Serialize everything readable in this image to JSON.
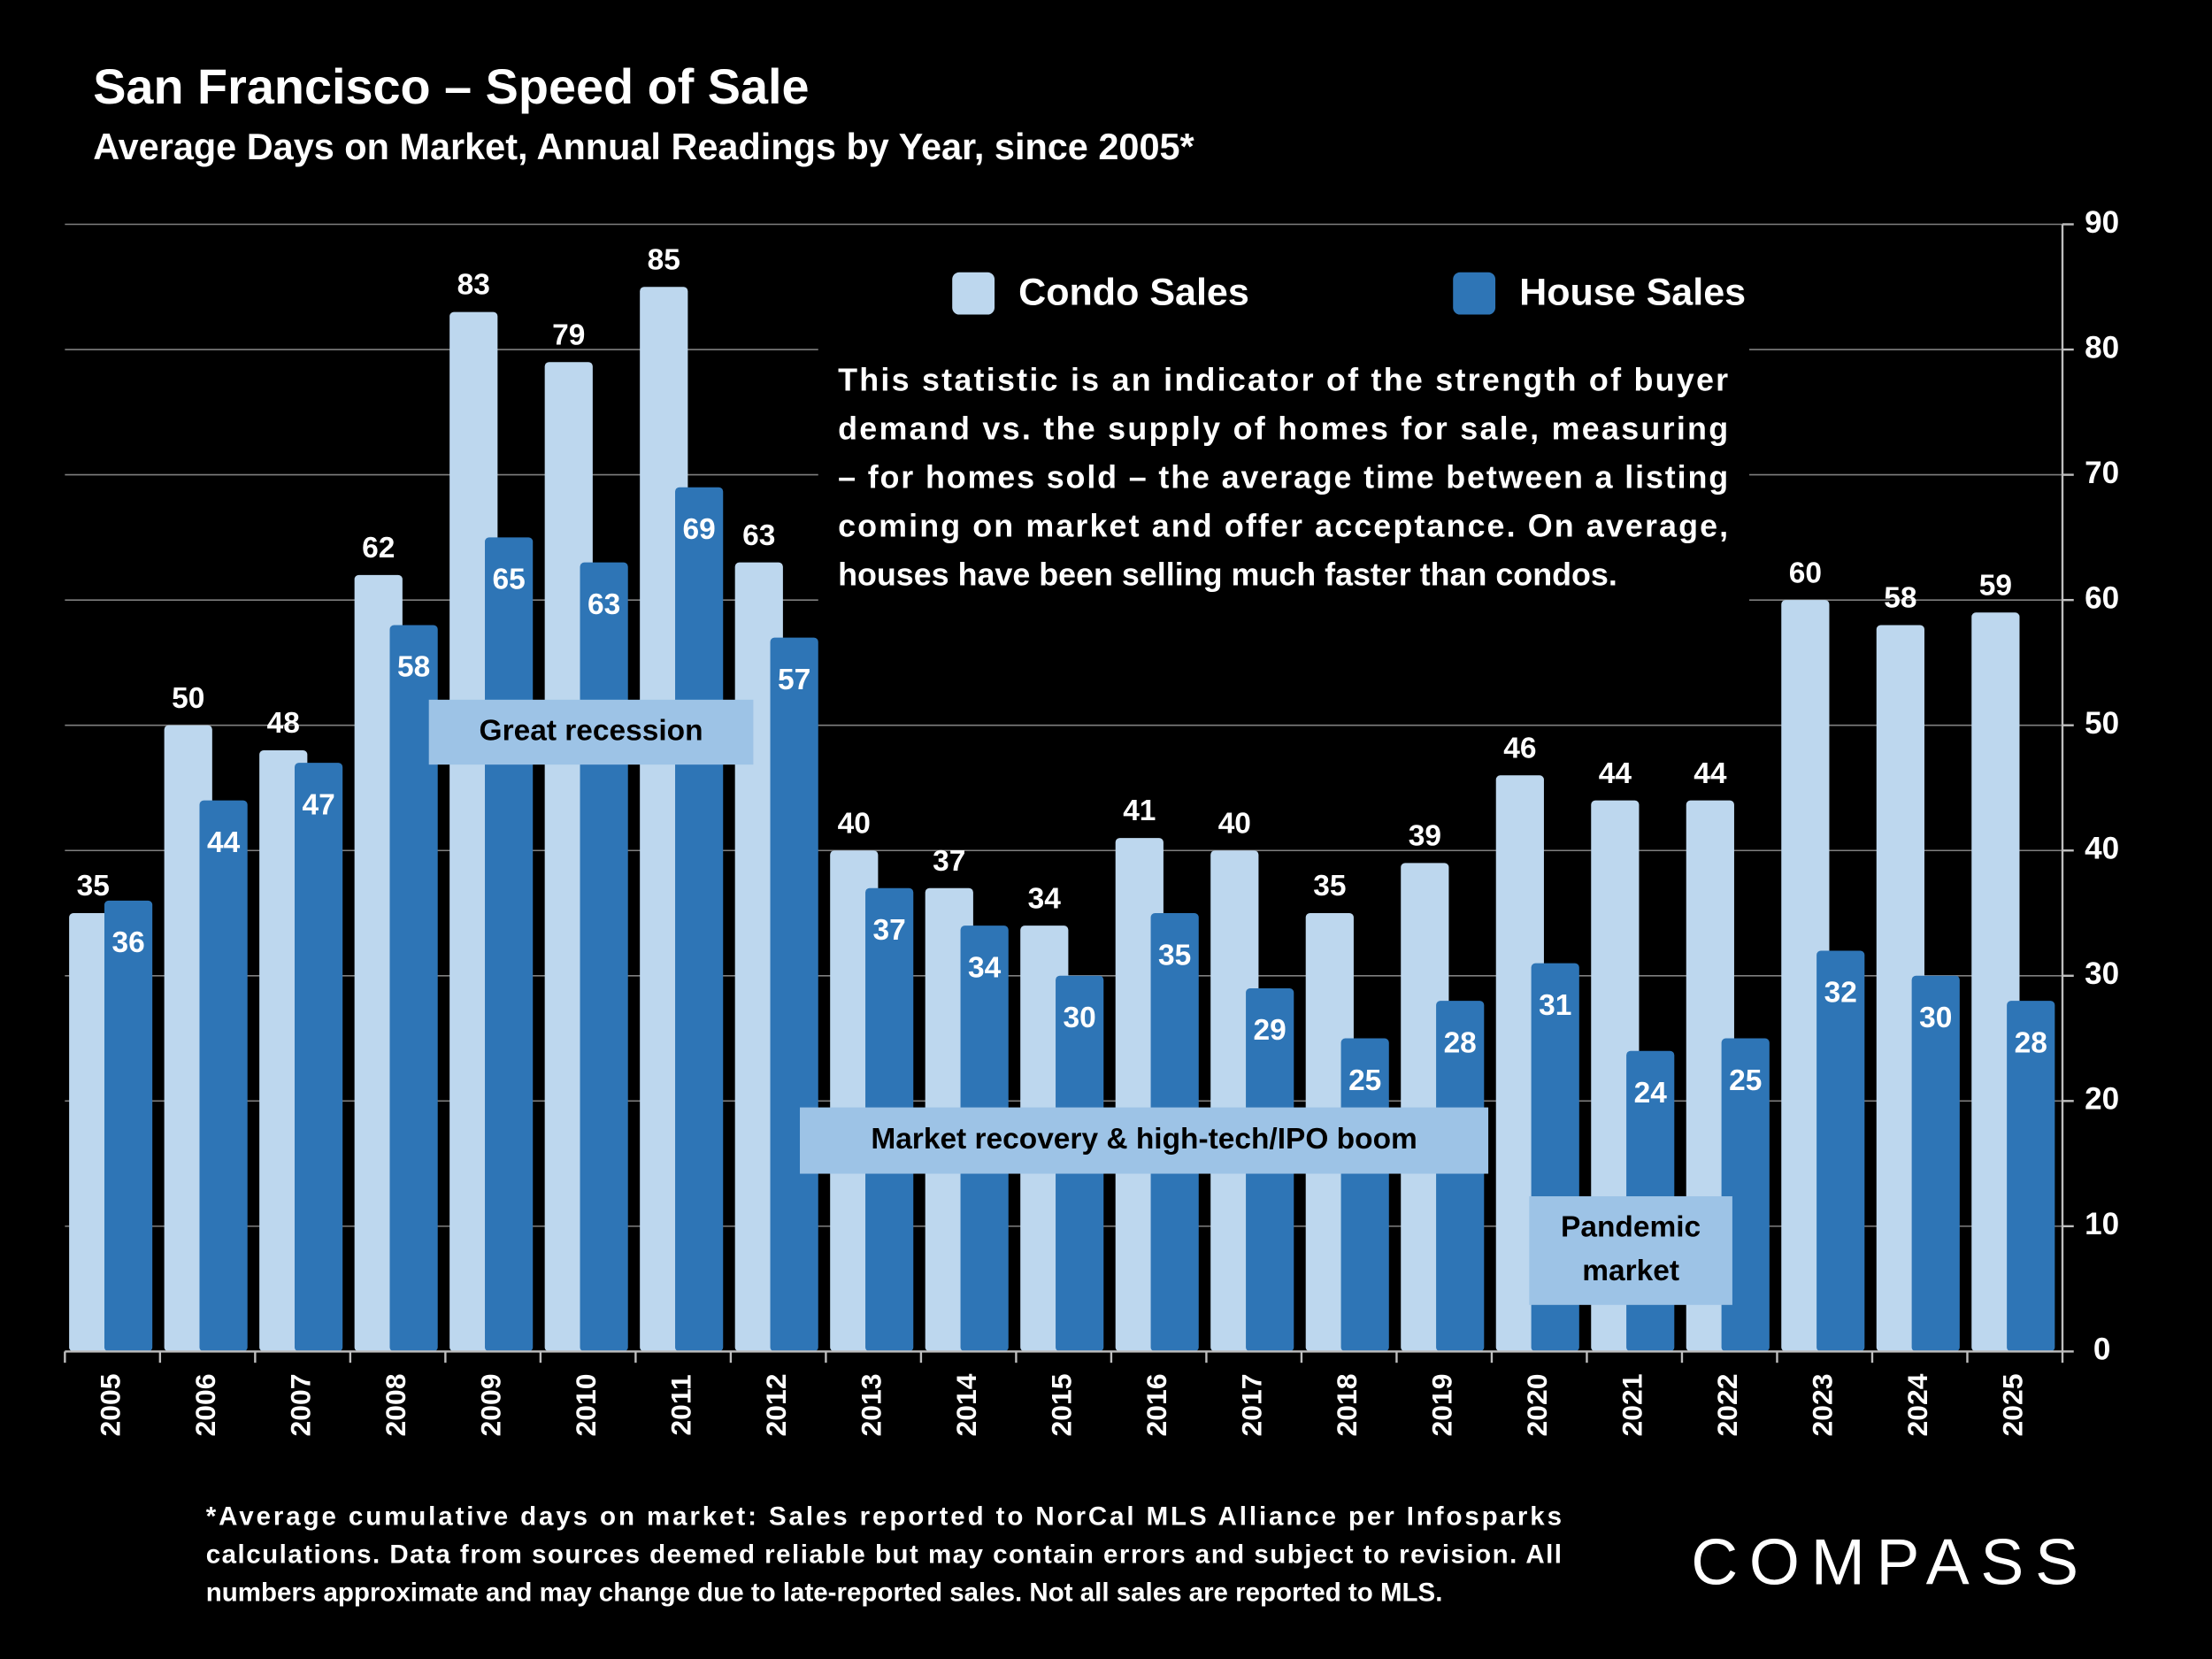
{
  "chart_data": {
    "type": "bar",
    "title": "San Francisco – Speed of Sale",
    "subtitle": "Average Days on Market, Annual Readings by Year, since 2005*",
    "categories": [
      "2005",
      "2006",
      "2007",
      "2008",
      "2009",
      "2010",
      "2011",
      "2012",
      "2013",
      "2014",
      "2015",
      "2016",
      "2017",
      "2018",
      "2019",
      "2020",
      "2021",
      "2022",
      "2023",
      "2024",
      "2025"
    ],
    "series": [
      {
        "name": "Condo Sales",
        "color": "#bdd7ee",
        "values": [
          35,
          50,
          48,
          62,
          83,
          79,
          85,
          63,
          40,
          37,
          34,
          41,
          40,
          35,
          39,
          46,
          44,
          44,
          60,
          58,
          59
        ]
      },
      {
        "name": "House Sales",
        "color": "#2e75b6",
        "values": [
          36,
          44,
          47,
          58,
          65,
          63,
          69,
          57,
          37,
          34,
          30,
          35,
          29,
          25,
          28,
          31,
          24,
          25,
          32,
          30,
          28
        ]
      }
    ],
    "ylim": [
      0,
      90
    ],
    "yticks": [
      0,
      10,
      20,
      30,
      40,
      50,
      60,
      70,
      80,
      90
    ],
    "grid": true,
    "y_axis_side": "right",
    "description": [
      "This statistic is an indicator of the strength of buyer",
      "demand vs. the supply of homes for sale, measuring",
      "– for homes sold – the average time between a listing",
      "coming on market and offer acceptance. On average,",
      "houses have been selling much faster than condos."
    ],
    "annotations": [
      [
        "Great recession"
      ],
      [
        "Market recovery &  high-tech/IPO boom"
      ],
      [
        "Pandemic",
        "market"
      ]
    ],
    "footnote": [
      "*Average cumulative days on market: Sales reported to NorCal MLS Alliance per Infosparks",
      "calculations. Data from sources deemed reliable but may contain errors and subject to revision. All",
      "numbers approximate and may change due to late-reported sales. Not all sales are reported to MLS."
    ],
    "logo": "COMPASS"
  }
}
